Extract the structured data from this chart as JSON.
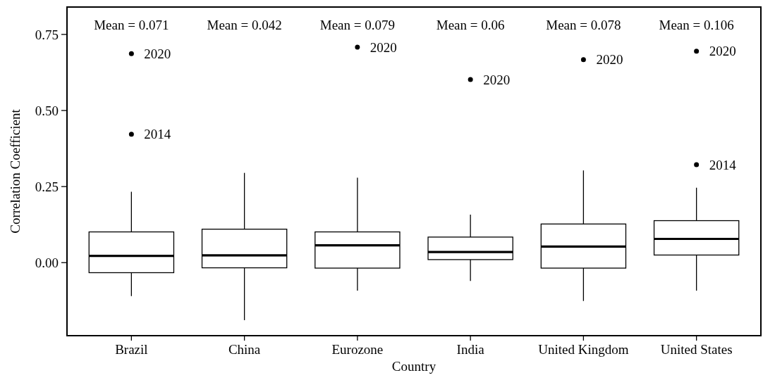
{
  "chart_data": {
    "type": "box",
    "xlabel": "Country",
    "ylabel": "Correlation Coefficient",
    "categories": [
      "Brazil",
      "China",
      "Eurozone",
      "India",
      "United Kingdom",
      "United States"
    ],
    "boxes": [
      {
        "low": -0.11,
        "q1": -0.033,
        "median": 0.022,
        "q3": 0.101,
        "high": 0.233
      },
      {
        "low": -0.189,
        "q1": -0.017,
        "median": 0.024,
        "q3": 0.11,
        "high": 0.295
      },
      {
        "low": -0.092,
        "q1": -0.018,
        "median": 0.057,
        "q3": 0.101,
        "high": 0.279
      },
      {
        "low": -0.06,
        "q1": 0.01,
        "median": 0.035,
        "q3": 0.084,
        "high": 0.158
      },
      {
        "low": -0.126,
        "q1": -0.018,
        "median": 0.053,
        "q3": 0.127,
        "high": 0.303
      },
      {
        "low": -0.092,
        "q1": 0.025,
        "median": 0.078,
        "q3": 0.138,
        "high": 0.246
      }
    ],
    "series": [
      {
        "type": "scatter",
        "color": "#000000",
        "x": [
          "Brazil",
          "Brazil",
          "Eurozone",
          "India",
          "United Kingdom",
          "United States",
          "United States"
        ],
        "values": [
          0.687,
          0.422,
          0.708,
          0.602,
          0.667,
          0.695,
          0.322
        ]
      }
    ],
    "color": "#000000",
    "ylim": [
      -0.24,
      0.84
    ],
    "yticks": [
      {
        "value": 0,
        "label": "0.00"
      },
      {
        "value": 0.25,
        "label": "0.25"
      },
      {
        "value": 0.5,
        "label": "0.50"
      },
      {
        "value": 0.75,
        "label": "0.75"
      }
    ],
    "grid": false,
    "annotations": [
      "Mean = 0.071",
      "Mean = 0.042",
      "Mean = 0.079",
      "Mean = 0.06",
      "Mean = 0.078",
      "Mean = 0.106",
      {
        "text": "2020",
        "x": "Brazil",
        "y": 0.687
      },
      {
        "text": "2014",
        "x": "Brazil",
        "y": 0.422
      },
      {
        "text": "2020",
        "x": "Eurozone",
        "y": 0.708
      },
      {
        "text": "2020",
        "x": "India",
        "y": 0.602
      },
      {
        "text": "2020",
        "x": "United Kingdom",
        "y": 0.667
      },
      {
        "text": "2020",
        "x": "United States",
        "y": 0.695
      },
      {
        "text": "2014",
        "x": "United States",
        "y": 0.322
      }
    ]
  }
}
